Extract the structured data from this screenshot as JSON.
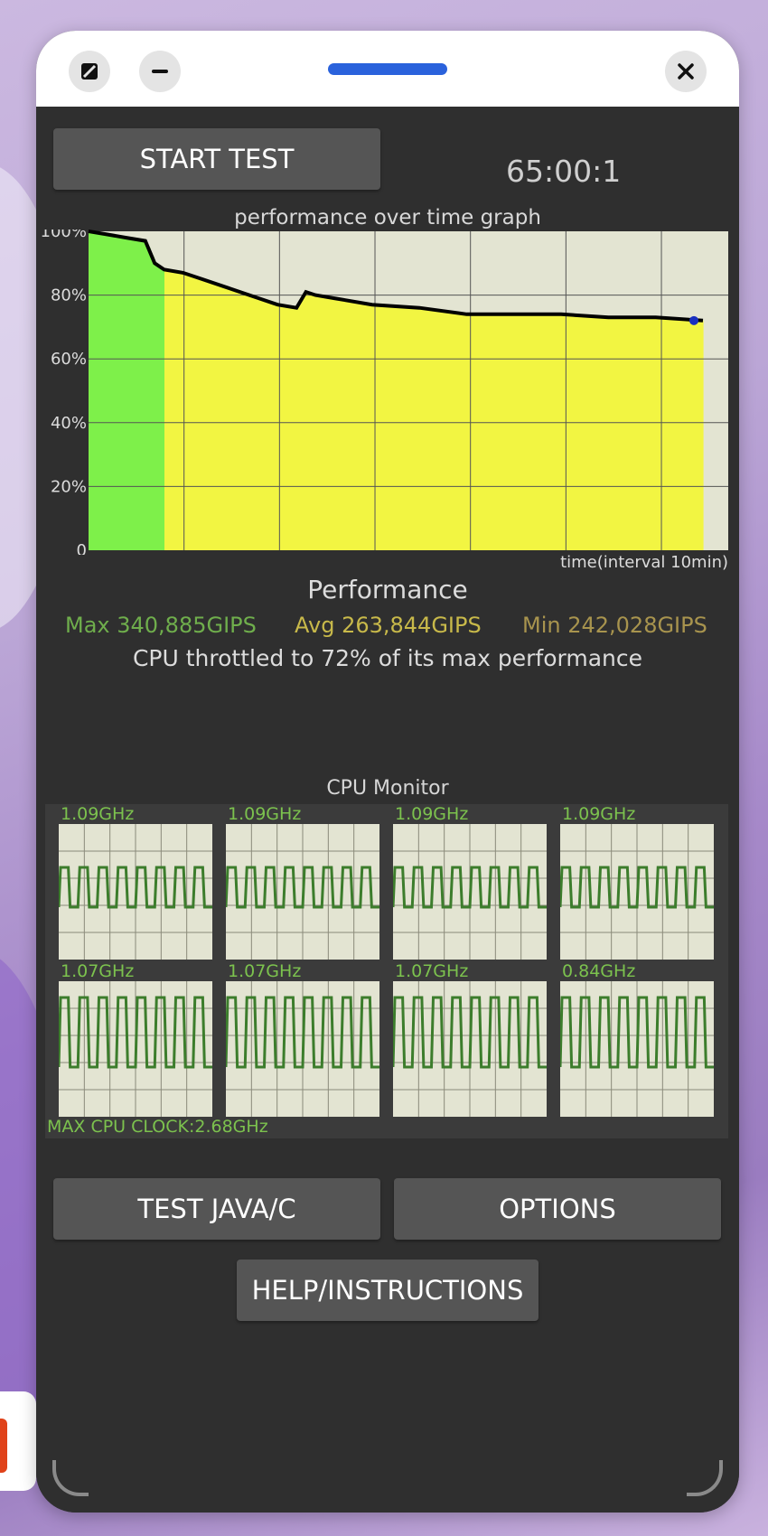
{
  "app": {
    "start_button": "START TEST",
    "timer": "65:00:1",
    "graph_title": "performance over time graph",
    "x_axis_label": "time(interval 10min)",
    "performance_title": "Performance",
    "stats": {
      "max": "Max 340,885GIPS",
      "avg": "Avg 263,844GIPS",
      "min": "Min 242,028GIPS"
    },
    "throttle_text": "CPU throttled to 72% of its max performance",
    "cpu_monitor_title": "CPU Monitor",
    "cores": [
      {
        "freq": "1.09GHz"
      },
      {
        "freq": "1.09GHz"
      },
      {
        "freq": "1.09GHz"
      },
      {
        "freq": "1.09GHz"
      },
      {
        "freq": "1.07GHz"
      },
      {
        "freq": "1.07GHz"
      },
      {
        "freq": "1.07GHz"
      },
      {
        "freq": "0.84GHz"
      }
    ],
    "max_cpu_clock": "MAX CPU CLOCK:2.68GHz",
    "test_button": "TEST JAVA/C",
    "options_button": "OPTIONS",
    "help_button": "HELP/INSTRUCTIONS"
  },
  "colors": {
    "graph_bg": "#e3e4d2",
    "high_perf": "#7ef04a",
    "mid_perf": "#f2f542",
    "line": "#000000",
    "core_wave": "#3c7d2c",
    "max_stat": "#6fae4c",
    "avg_stat": "#c8b94a",
    "min_stat": "#a8944e",
    "accent": "#2a62dc"
  },
  "chart_data": {
    "type": "area",
    "title": "performance over time graph",
    "xlabel": "time(interval 10min)",
    "ylabel": "",
    "y_tick_labels": [
      "100%",
      "80%",
      "60%",
      "40%",
      "20%",
      "0"
    ],
    "ylim": [
      0,
      100
    ],
    "x_minutes": [
      0,
      2,
      4,
      6,
      7,
      8,
      10,
      12,
      15,
      18,
      20,
      22,
      23,
      24,
      26,
      30,
      35,
      40,
      45,
      50,
      55,
      60,
      65
    ],
    "performance_pct": [
      100,
      99,
      98,
      97,
      90,
      88,
      87,
      85,
      82,
      79,
      77,
      76,
      81,
      80,
      79,
      77,
      76,
      74,
      74,
      74,
      73,
      73,
      72
    ],
    "grid": true
  }
}
